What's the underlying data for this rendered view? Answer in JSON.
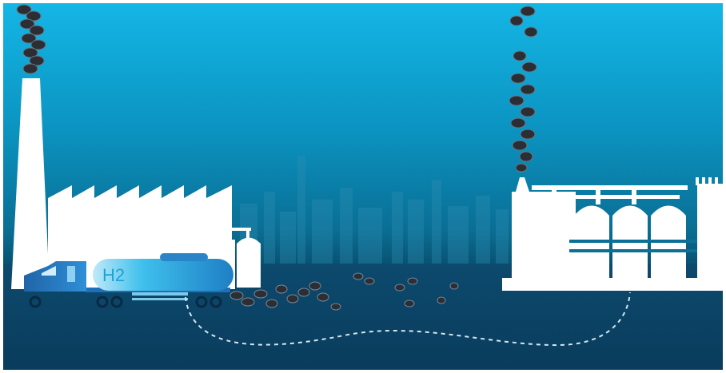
{
  "scene": {
    "tanker_label": "H2",
    "colors": {
      "sky_top": "#12b4e4",
      "sky_mid": "#0a86b0",
      "sky_low": "#0a5578",
      "ground": "#0b3f61",
      "silhouette": "#ffffff",
      "smoke": "#2a2e34",
      "truck_blue": "#1f6fb8",
      "tanker_light": "#3cc0ec",
      "pipeline_dash": "#cfe3ee"
    }
  }
}
